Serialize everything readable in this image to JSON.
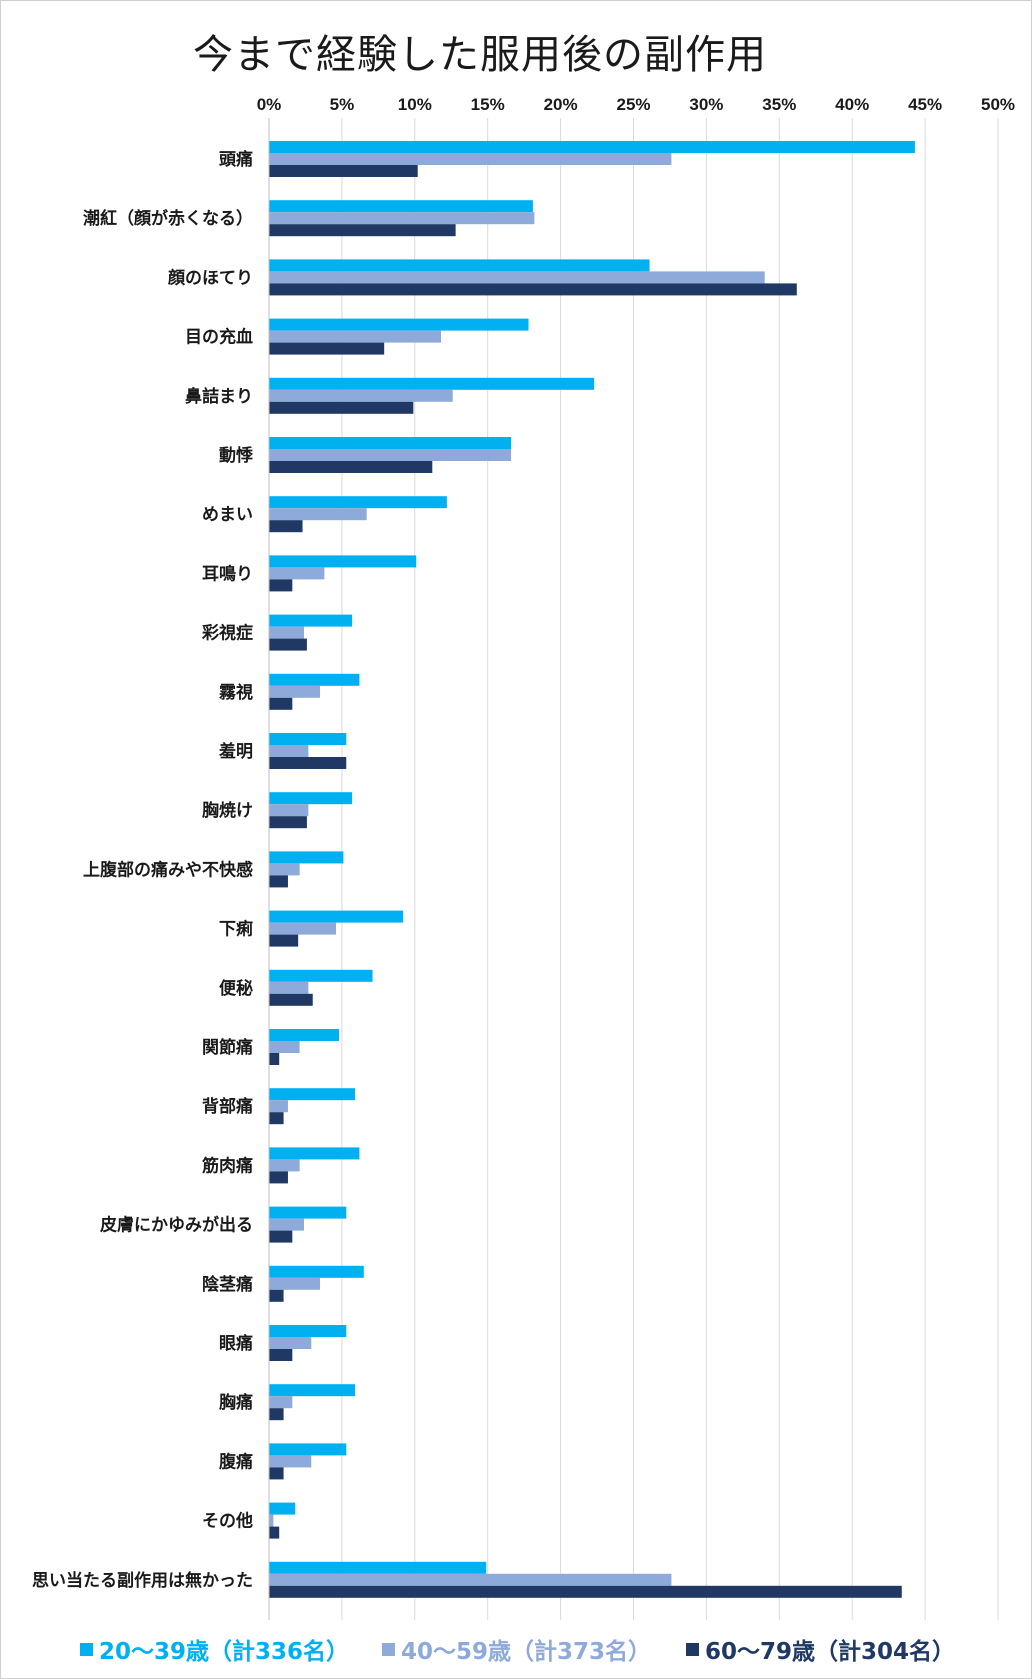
{
  "chart_data": {
    "type": "bar",
    "orientation": "horizontal",
    "title": "今まで経験した服用後の副作用",
    "xlim": [
      0,
      50
    ],
    "x_ticks": [
      "0%",
      "5%",
      "10%",
      "15%",
      "20%",
      "25%",
      "30%",
      "35%",
      "40%",
      "45%",
      "50%"
    ],
    "grid": true,
    "legend_position": "bottom",
    "categories": [
      "頭痛",
      "潮紅（顔が赤くなる）",
      "顔のほてり",
      "目の充血",
      "鼻詰まり",
      "動悸",
      "めまい",
      "耳鳴り",
      "彩視症",
      "霧視",
      "羞明",
      "胸焼け",
      "上腹部の痛みや不快感",
      "下痢",
      "便秘",
      "関節痛",
      "背部痛",
      "筋肉痛",
      "皮膚にかゆみが出る",
      "陰茎痛",
      "眼痛",
      "胸痛",
      "腹痛",
      "その他",
      "思い当たる副作用は無かった"
    ],
    "series": [
      {
        "name": "20〜39歳（計336名）",
        "color": "#00b0f0",
        "values": [
          44.3,
          18.1,
          26.1,
          17.8,
          22.3,
          16.6,
          12.2,
          10.1,
          5.7,
          6.2,
          5.3,
          5.7,
          5.1,
          9.2,
          7.1,
          4.8,
          5.9,
          6.2,
          5.3,
          6.5,
          5.3,
          5.9,
          5.3,
          1.8,
          14.9
        ]
      },
      {
        "name": "40〜59歳（計373名）",
        "color": "#8eaadb",
        "values": [
          27.6,
          18.2,
          34.0,
          11.8,
          12.6,
          16.6,
          6.7,
          3.8,
          2.4,
          3.5,
          2.7,
          2.7,
          2.1,
          4.6,
          2.7,
          2.1,
          1.3,
          2.1,
          2.4,
          3.5,
          2.9,
          1.6,
          2.9,
          0.3,
          27.6
        ]
      },
      {
        "name": "60〜79歳（計304名）",
        "color": "#203864",
        "values": [
          10.2,
          12.8,
          36.2,
          7.9,
          9.9,
          11.2,
          2.3,
          1.6,
          2.6,
          1.6,
          5.3,
          2.6,
          1.3,
          2.0,
          3.0,
          0.7,
          1.0,
          1.3,
          1.6,
          1.0,
          1.6,
          1.0,
          1.0,
          0.7,
          43.4
        ]
      }
    ]
  },
  "legend": [
    {
      "label": "20〜39歳（計336名）",
      "color": "#00b0f0"
    },
    {
      "label": "40〜59歳（計373名）",
      "color": "#8eaadb"
    },
    {
      "label": "60〜79歳（計304名）",
      "color": "#203864"
    }
  ]
}
